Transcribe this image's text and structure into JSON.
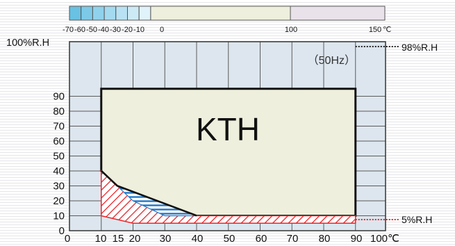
{
  "temperature_scale": {
    "ticks": [
      "-70",
      "-60",
      "-50",
      "-40",
      "-30",
      "-20",
      "-10",
      "0",
      "100",
      "150"
    ],
    "unit": "℃",
    "cold_cell_colors": [
      "#69c1e3",
      "#7ccae8",
      "#90d2ec",
      "#a4daf0",
      "#b8e2f3",
      "#cceaf6",
      "#e0f2fa"
    ],
    "mid_color": "#eeefdc",
    "hot_color": "#eae2ea"
  },
  "chart": {
    "y_top_label": "100%R.H",
    "y_ticks": [
      "0",
      "10",
      "20",
      "30",
      "40",
      "50",
      "60",
      "70",
      "80",
      "90"
    ],
    "x_ticks": [
      "0",
      "10",
      "15",
      "20",
      "30",
      "40",
      "50",
      "60",
      "70",
      "80",
      "90"
    ],
    "x_unit_label": "100℃",
    "model": "KTH",
    "frequency": "（50Hz）",
    "upper_limit_label": "98%R.H",
    "lower_limit_label": "5%R.H",
    "colors": {
      "grid_bg": "#dde6ee",
      "envelope_fill": "#eeefdc",
      "hatch_red": "#e8262b",
      "hatch_blue": "#1f78c8",
      "ref_line_upper": "#222222",
      "ref_line_lower": "#e8262b"
    }
  },
  "chart_data": {
    "type": "area",
    "x_range": [
      0,
      100
    ],
    "y_range": [
      0,
      100
    ],
    "series": [
      {
        "values": [
          [
            10,
            40
          ],
          [
            10,
            95
          ],
          [
            90,
            95
          ],
          [
            90,
            10
          ],
          [
            40,
            10
          ],
          [
            15,
            30
          ]
        ]
      },
      {
        "values": [
          [
            10,
            40
          ],
          [
            15,
            30
          ],
          [
            40,
            10
          ],
          [
            90,
            10
          ],
          [
            90,
            5
          ],
          [
            20,
            5
          ],
          [
            10,
            10
          ]
        ]
      },
      {
        "values": [
          [
            15,
            30
          ],
          [
            40,
            10
          ],
          [
            30,
            10
          ],
          [
            20,
            20
          ]
        ]
      }
    ],
    "annotations": [
      "98%R.H",
      "5%R.H",
      "KTH",
      "（50Hz）"
    ]
  }
}
